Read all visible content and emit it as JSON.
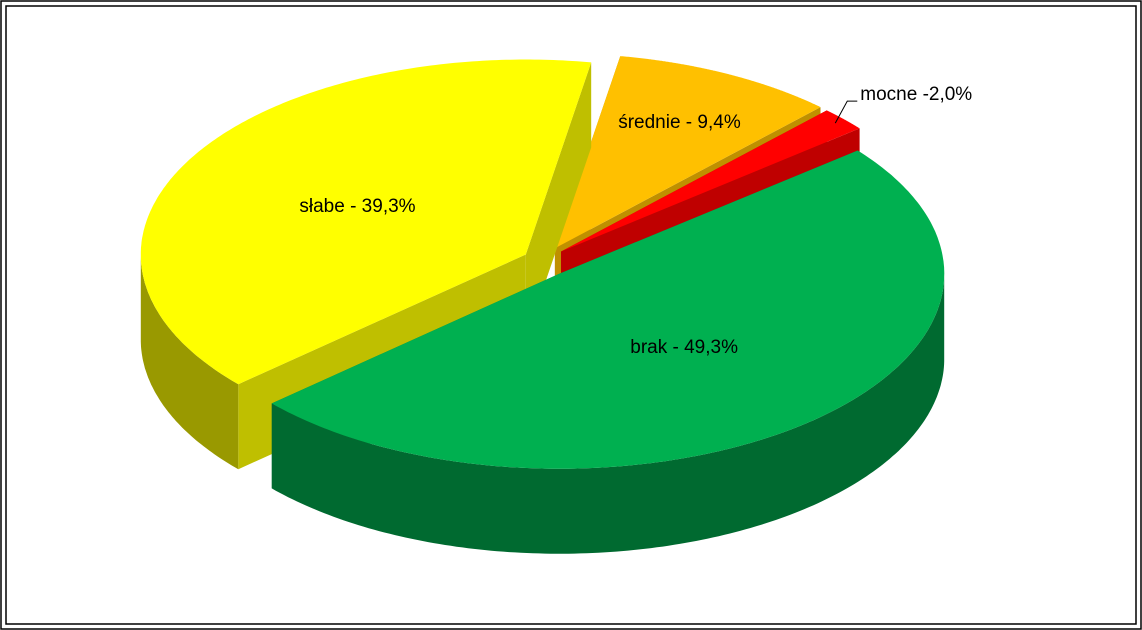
{
  "chart_data": {
    "type": "pie3d",
    "values": [
      9.4,
      2.0,
      49.3,
      39.3
    ],
    "value_labels": [
      "średnie - 9,4%",
      "mocne -2,0%",
      "brak - 49,3%",
      "słabe - 39,3%"
    ],
    "colors": [
      "#ffc000",
      "#ff0000",
      "#00b050",
      "#ffff00"
    ]
  }
}
